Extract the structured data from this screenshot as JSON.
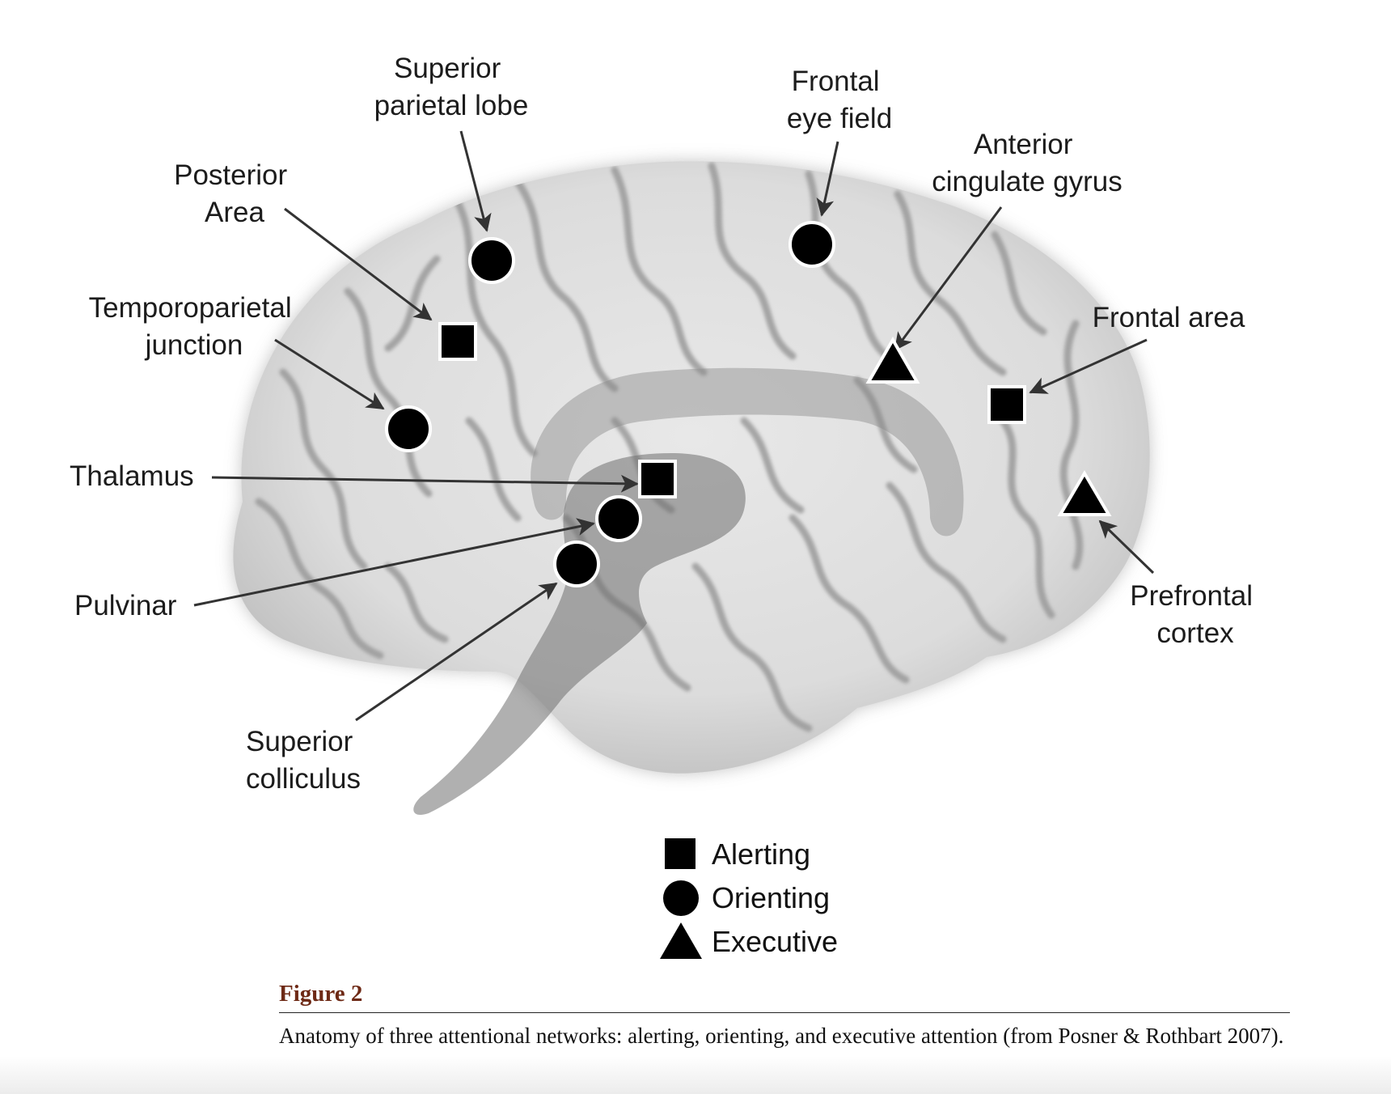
{
  "figure": {
    "labels": {
      "superior_parietal_lobe": [
        "Superior",
        "parietal lobe"
      ],
      "frontal_eye_field": [
        "Frontal",
        "eye field"
      ],
      "anterior_cingulate_gyrus": [
        "Anterior",
        "cingulate gyrus"
      ],
      "posterior_area": [
        "Posterior",
        "Area"
      ],
      "temporoparietal_junction": [
        "Temporoparietal",
        "junction"
      ],
      "frontal_area": [
        "Frontal area"
      ],
      "thalamus": [
        "Thalamus"
      ],
      "pulvinar": [
        "Pulvinar"
      ],
      "prefrontal_cortex": [
        "Prefrontal",
        "cortex"
      ],
      "superior_colliculus": [
        "Superior",
        "colliculus"
      ]
    },
    "legend": {
      "alerting": "Alerting",
      "orienting": "Orienting",
      "executive": "Executive"
    },
    "colors": {
      "brain_fill": "#d9d9d9",
      "brain_shadow": "#a9a9a9",
      "gyri_stroke": "#8f8f8f",
      "pathway_fill": "#7a7a7a",
      "marker_fill": "#000000",
      "arrow": "#333333"
    }
  },
  "caption": {
    "title": "Figure 2",
    "text": "Anatomy of three attentional networks: alerting, orienting, and executive attention (from Posner & Rothbart 2007)."
  }
}
